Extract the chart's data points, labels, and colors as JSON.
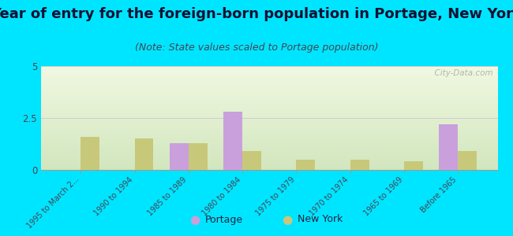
{
  "title": "Year of entry for the foreign-born population in Portage, New York",
  "subtitle": "(Note: State values scaled to Portage population)",
  "categories": [
    "1995 to March 2...",
    "1990 to 1994",
    "1985 to 1989",
    "1980 to 1984",
    "1975 to 1979",
    "1970 to 1974",
    "1965 to 1969",
    "Before 1965"
  ],
  "portage_values": [
    0,
    0,
    1.3,
    2.8,
    0,
    0,
    0,
    2.2
  ],
  "newyork_values": [
    1.6,
    1.5,
    1.3,
    0.9,
    0.5,
    0.5,
    0.4,
    0.9
  ],
  "portage_color": "#c9a0dc",
  "newyork_color": "#c8c87a",
  "background_color": "#00e5ff",
  "ylim": [
    0,
    5
  ],
  "yticks": [
    0,
    2.5,
    5
  ],
  "title_fontsize": 13,
  "subtitle_fontsize": 9,
  "bar_width": 0.35,
  "watermark": "  City-Data.com"
}
